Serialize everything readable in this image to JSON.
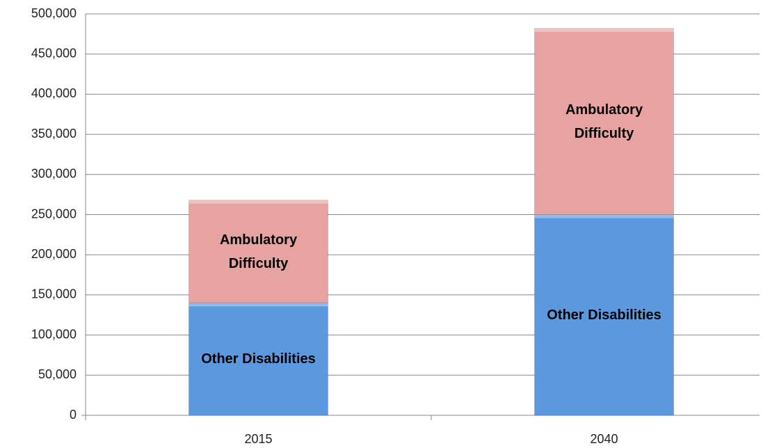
{
  "chart_data": {
    "type": "stacked_bar",
    "categories": [
      "2015",
      "2040"
    ],
    "series": [
      {
        "name": "Other Disabilities",
        "color": "#5b98de",
        "values": [
          140000,
          250000
        ]
      },
      {
        "name": "Ambulatory Difficulty",
        "color": "#e6a3a1",
        "values": [
          128000,
          232000
        ]
      }
    ],
    "ylim": [
      0,
      500000
    ],
    "yticks": [
      0,
      {
        "value": 50000,
        "label": "50,000"
      },
      {
        "value": 100000,
        "label": "100,000"
      },
      {
        "value": 150000,
        "label": "150,000"
      },
      {
        "value": 200000,
        "label": "200,000"
      },
      {
        "value": 250000,
        "label": "250,000"
      },
      {
        "value": 300000,
        "label": "300,000"
      },
      {
        "value": 350000,
        "label": "350,000"
      },
      {
        "value": 400000,
        "label": "400,000"
      },
      {
        "value": 450000,
        "label": "450,000"
      },
      {
        "value": 500000,
        "label": "500,000"
      }
    ],
    "grid": true
  }
}
